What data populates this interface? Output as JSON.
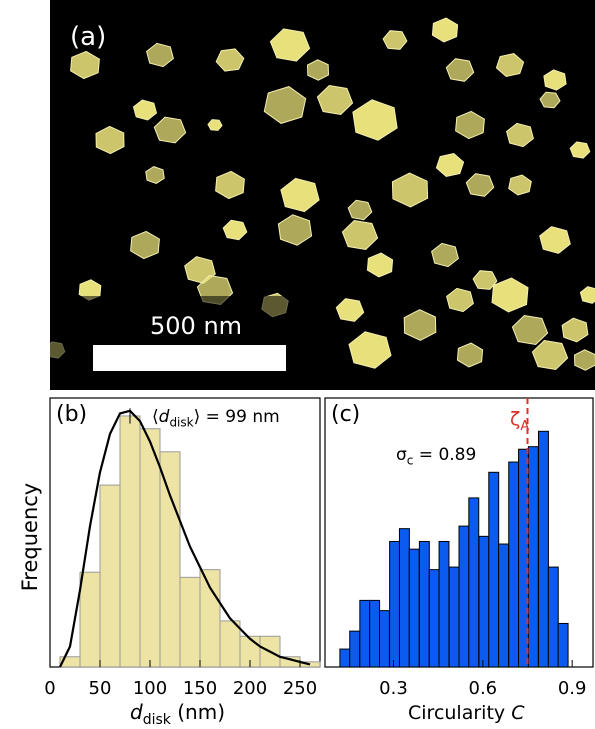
{
  "panel_a": {
    "label": "(a)",
    "scale_bar_label": "500 nm",
    "particle_color": "#e8e07a"
  },
  "chart_data": [
    {
      "type": "bar",
      "panel_label": "(b)",
      "annotation": "⟨d_disk⟩ = 99 nm",
      "annotation_main": "d",
      "annotation_sub": "disk",
      "annotation_value": "= 99 nm",
      "xlabel": "d",
      "xlabel_sub": "disk",
      "xlabel_unit": "(nm)",
      "ylabel": "Frequency",
      "xlim": [
        0,
        270
      ],
      "ylim": [
        0,
        1.05
      ],
      "xticks": [
        0,
        50,
        100,
        150,
        200,
        250
      ],
      "bin_width": 20,
      "bin_starts": [
        10,
        30,
        50,
        70,
        90,
        110,
        130,
        150,
        170,
        190,
        210,
        230,
        250
      ],
      "values": [
        0.04,
        0.37,
        0.71,
        0.98,
        0.93,
        0.84,
        0.35,
        0.38,
        0.18,
        0.12,
        0.12,
        0.04,
        0.02
      ],
      "fit_curve": {
        "type": "lognormal",
        "x": [
          10,
          20,
          30,
          40,
          50,
          60,
          70,
          80,
          90,
          100,
          110,
          120,
          130,
          140,
          150,
          160,
          170,
          180,
          190,
          200,
          210,
          220,
          230,
          240,
          250,
          260
        ],
        "y": [
          0.0,
          0.08,
          0.3,
          0.55,
          0.76,
          0.91,
          0.99,
          1.0,
          0.96,
          0.88,
          0.78,
          0.67,
          0.57,
          0.47,
          0.39,
          0.31,
          0.25,
          0.19,
          0.15,
          0.11,
          0.08,
          0.06,
          0.04,
          0.03,
          0.02,
          0.01
        ]
      },
      "bar_color": "#ede3a4",
      "bar_edge": "#9a9a9a"
    },
    {
      "type": "bar",
      "panel_label": "(c)",
      "annotation_main": "σ",
      "annotation_sub": "c",
      "annotation_value": "= 0.89",
      "xlabel": "Circularity",
      "xlabel_var": "C",
      "xlim": [
        0.07,
        0.97
      ],
      "ylim": [
        0,
        1.05
      ],
      "xticks": [
        0.3,
        0.6,
        0.9
      ],
      "bin_width": 0.0333,
      "bin_starts": [
        0.12,
        0.153,
        0.187,
        0.22,
        0.253,
        0.287,
        0.32,
        0.353,
        0.387,
        0.42,
        0.453,
        0.487,
        0.52,
        0.553,
        0.587,
        0.62,
        0.653,
        0.687,
        0.72,
        0.753,
        0.787,
        0.82,
        0.853,
        0.887
      ],
      "values": [
        0.07,
        0.14,
        0.26,
        0.26,
        0.22,
        0.49,
        0.54,
        0.46,
        0.49,
        0.38,
        0.49,
        0.39,
        0.55,
        0.66,
        0.51,
        0.76,
        0.48,
        0.8,
        0.85,
        0.86,
        0.92,
        0.39,
        0.17,
        0.0
      ],
      "vline": {
        "x": 0.75,
        "label": "ζ",
        "label_sub": "A",
        "color": "#e0302a"
      },
      "bar_color": "#0b5bf0",
      "bar_edge": "#000000"
    }
  ]
}
